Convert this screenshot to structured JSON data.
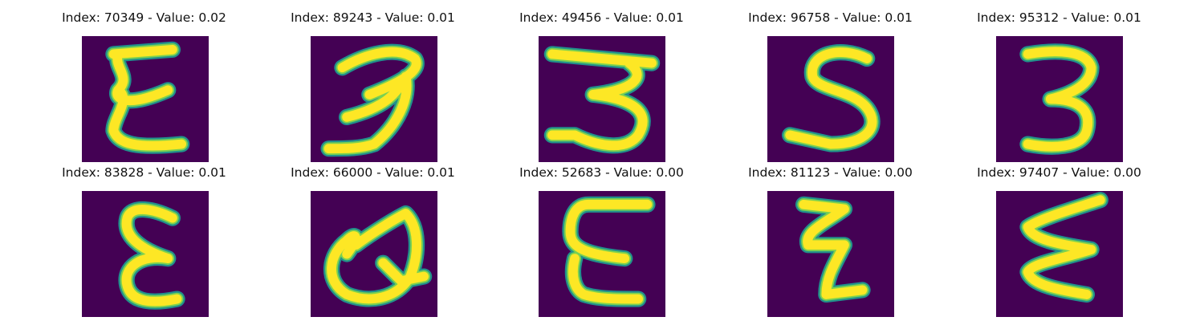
{
  "colors": {
    "background": "#440154",
    "stroke_edge": "#21918c",
    "stroke_mid": "#7ad151",
    "stroke_core": "#fde725"
  },
  "panels": [
    {
      "index": "70349",
      "value": "0.02",
      "title": "Index: 70349 - Value: 0.02",
      "glyph": "epsilon-like"
    },
    {
      "index": "89243",
      "value": "0.01",
      "title": "Index: 89243 - Value: 0.01",
      "glyph": "3"
    },
    {
      "index": "49456",
      "value": "0.01",
      "title": "Index: 49456 - Value: 0.01",
      "glyph": "3"
    },
    {
      "index": "96758",
      "value": "0.01",
      "title": "Index: 96758 - Value: 0.01",
      "glyph": "S"
    },
    {
      "index": "95312",
      "value": "0.01",
      "title": "Index: 95312 - Value: 0.01",
      "glyph": "3"
    },
    {
      "index": "83828",
      "value": "0.01",
      "title": "Index: 83828 - Value: 0.01",
      "glyph": "epsilon"
    },
    {
      "index": "66000",
      "value": "0.01",
      "title": "Index: 66000 - Value: 0.01",
      "glyph": "Q"
    },
    {
      "index": "52683",
      "value": "0.00",
      "title": "Index: 52683 - Value: 0.00",
      "glyph": "E"
    },
    {
      "index": "81123",
      "value": "0.00",
      "title": "Index: 81123 - Value: 0.00",
      "glyph": "Z"
    },
    {
      "index": "97407",
      "value": "0.00",
      "title": "Index: 97407 - Value: 0.00",
      "glyph": "zigzag"
    }
  ]
}
